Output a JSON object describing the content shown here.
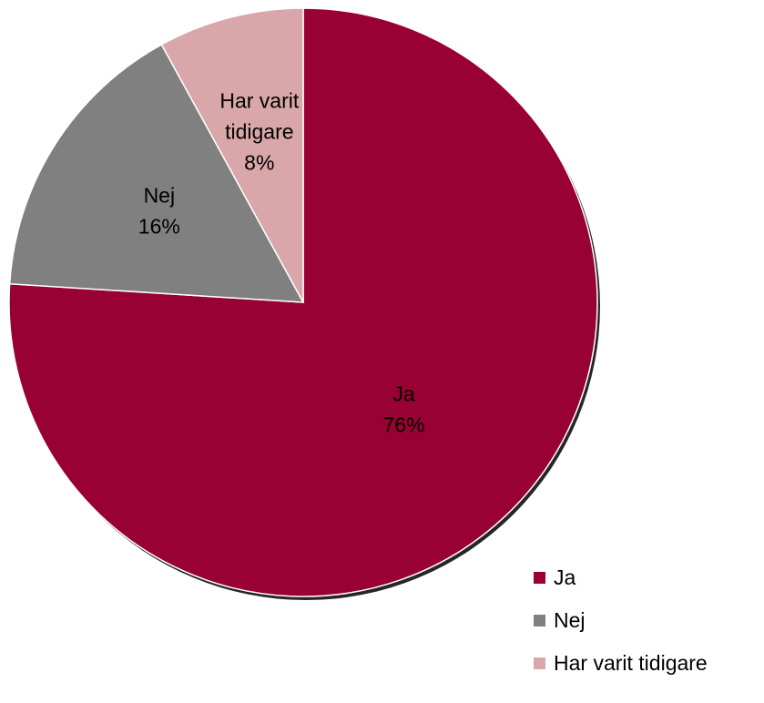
{
  "chart_data": {
    "type": "pie",
    "title": "",
    "start_angle_deg": 0,
    "direction": "clockwise",
    "slices": [
      {
        "label": "Ja",
        "value": 76,
        "display": "76%",
        "color": "#990033"
      },
      {
        "label": "Nej",
        "value": 16,
        "display": "16%",
        "color": "#808080"
      },
      {
        "label": "Har varit tidigare",
        "value": 8,
        "display": "8%",
        "color": "#d9a6a9",
        "label_lines": [
          "Har varit",
          "tidigare"
        ]
      }
    ],
    "legend": {
      "position": "bottom-right",
      "entries": [
        "Ja",
        "Nej",
        "Har varit tidigare"
      ]
    }
  }
}
